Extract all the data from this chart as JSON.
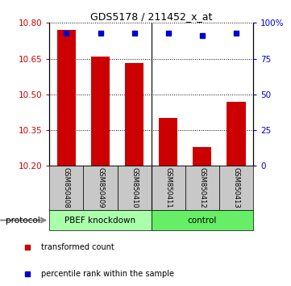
{
  "title": "GDS5178 / 211452_x_at",
  "samples": [
    "GSM850408",
    "GSM850409",
    "GSM850410",
    "GSM850411",
    "GSM850412",
    "GSM850413"
  ],
  "bar_values": [
    10.77,
    10.66,
    10.63,
    10.4,
    10.28,
    10.47
  ],
  "percentile_values": [
    93,
    93,
    93,
    93,
    91,
    93
  ],
  "ylim_left": [
    10.2,
    10.8
  ],
  "ylim_right": [
    0,
    100
  ],
  "yticks_left": [
    10.2,
    10.35,
    10.5,
    10.65,
    10.8
  ],
  "yticks_right": [
    0,
    25,
    50,
    75,
    100
  ],
  "bar_color": "#cc0000",
  "dot_color": "#0000cc",
  "bar_width": 0.55,
  "sample_box_color": "#c8c8c8",
  "group1_color": "#aaffaa",
  "group2_color": "#66ee66",
  "legend_items": [
    {
      "label": "transformed count",
      "color": "#cc0000"
    },
    {
      "label": "percentile rank within the sample",
      "color": "#0000cc"
    }
  ],
  "protocol_label": "protocol"
}
